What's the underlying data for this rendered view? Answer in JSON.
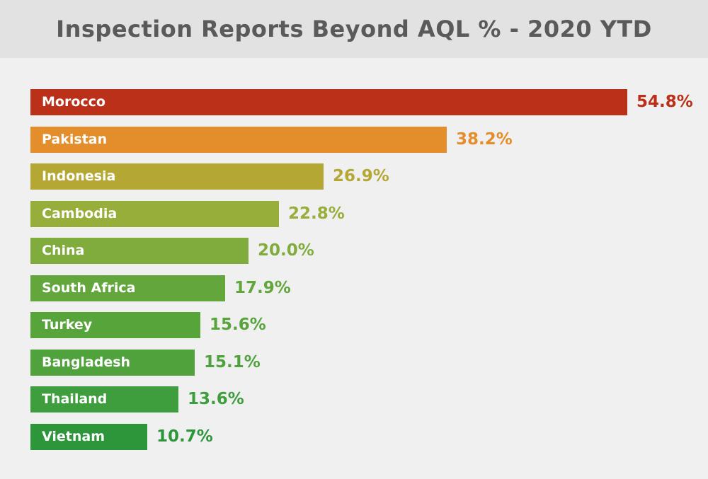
{
  "chart_data": {
    "type": "bar",
    "orientation": "horizontal",
    "title": "Inspection Reports Beyond AQL % - 2020 YTD",
    "categories": [
      "Morocco",
      "Pakistan",
      "Indonesia",
      "Cambodia",
      "China",
      "South Africa",
      "Turkey",
      "Bangladesh",
      "Thailand",
      "Vietnam"
    ],
    "values": [
      54.8,
      38.2,
      26.9,
      22.8,
      20.0,
      17.9,
      15.6,
      15.1,
      13.6,
      10.7
    ],
    "value_labels": [
      "54.8%",
      "38.2%",
      "26.9%",
      "22.8%",
      "20.0%",
      "17.9%",
      "15.6%",
      "15.1%",
      "13.6%",
      "10.7%"
    ],
    "colors": [
      "#bb3018",
      "#e48d2b",
      "#b5a733",
      "#98ae3a",
      "#7fac3c",
      "#62a63c",
      "#57a43b",
      "#4fa23c",
      "#3e9d3c",
      "#2d963b"
    ],
    "value_colors": [
      "#bb3018",
      "#e48d2b",
      "#b5a733",
      "#98ae3a",
      "#7fac3c",
      "#62a63c",
      "#57a43b",
      "#4fa23c",
      "#3e9d3c",
      "#2d963b"
    ],
    "xlim": [
      0,
      54.8
    ],
    "xlabel": "",
    "ylabel": "",
    "grid": false,
    "legend": "none"
  }
}
